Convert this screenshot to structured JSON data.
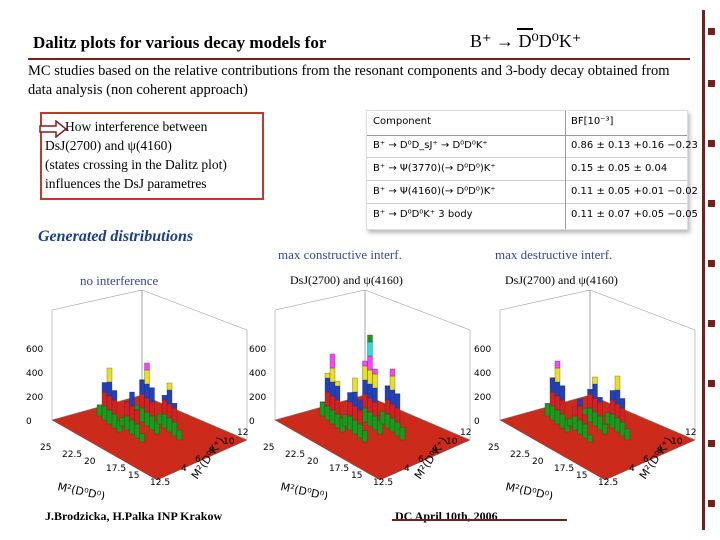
{
  "slide": {
    "title": "Dalitz plots for various decay models for",
    "decay": "B⁺ → D⁰D⁰K⁺",
    "mc_text": "MC studies based on the relative contributions from the resonant components and 3-body decay obtained from data analysis (non coherent approach)",
    "box_lines": [
      "How interference between",
      "DsJ(2700) and ψ(4160)",
      "(states crossing in the Dalitz plot)",
      "influences the DsJ parametres"
    ],
    "generated_heading": "Generated distributions",
    "footer_authors": "J.Brodzicka, H.Palka  INP Krakow",
    "footer_meeting": "DC    April 10th, 2006"
  },
  "table": {
    "header": [
      "Component",
      "BF[10⁻³]"
    ],
    "rows": [
      {
        "component": "B⁺ → D⁰D_sJ⁺ → D⁰D⁰K⁺",
        "bf": "0.86 ± 0.13 +0.16 −0.23"
      },
      {
        "component": "B⁺ → Ψ(3770)(→ D⁰D⁰)K⁺",
        "bf": "0.15 ± 0.05 ± 0.04"
      },
      {
        "component": "B⁺ → Ψ(4160)(→ D⁰D⁰)K⁺",
        "bf": "0.11 ± 0.05 +0.01 −0.02"
      },
      {
        "component": "B⁺ → D⁰D⁰K⁺ 3 body",
        "bf": "0.11 ± 0.07 +0.05 −0.05"
      }
    ]
  },
  "plots": [
    {
      "label": "no interference",
      "sublabel": ""
    },
    {
      "label": "max constructive interf.",
      "sublabel": "DsJ(2700) and ψ(4160)"
    },
    {
      "label": "max destructive interf.",
      "sublabel": "DsJ(2700) and ψ(4160)"
    }
  ],
  "axes": {
    "z_ticks": [
      "600",
      "400",
      "200",
      "0"
    ],
    "x_ticks": [
      "25",
      "22.5",
      "20",
      "17.5",
      "15",
      "12.5"
    ],
    "y_ticks": [
      "12",
      "10",
      "8",
      "6",
      "4"
    ],
    "x_label": "M²(D⁰D⁰)",
    "y_label": "M²(D⁰K⁺)"
  },
  "colors": {
    "accent": "#7a1d1d",
    "box_border": "#c0392b",
    "heading": "#1a3d8c",
    "plot_floor": "#cc2a1a"
  }
}
